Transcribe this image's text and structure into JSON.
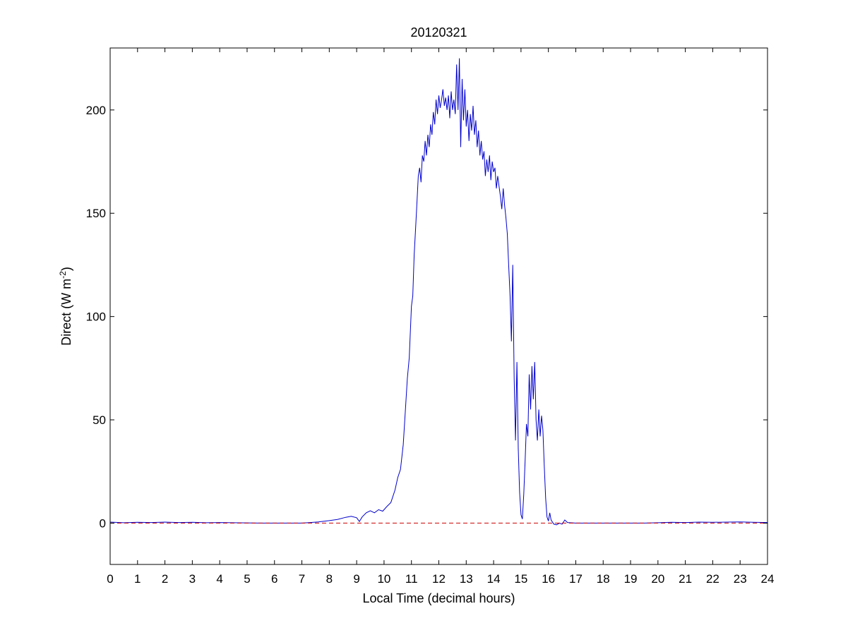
{
  "chart_data": {
    "type": "line",
    "title": "20120321",
    "xlabel": "Local Time (decimal hours)",
    "ylabel": {
      "main": "Direct (W m",
      "superscript": "-2",
      "close": ")"
    },
    "xlim": [
      0,
      24
    ],
    "ylim": [
      -20,
      230
    ],
    "x_ticks": [
      0,
      1,
      2,
      3,
      4,
      5,
      6,
      7,
      8,
      9,
      10,
      11,
      12,
      13,
      14,
      15,
      16,
      17,
      18,
      19,
      20,
      21,
      22,
      23,
      24
    ],
    "y_ticks": [
      0,
      50,
      100,
      150,
      200
    ],
    "grid": false,
    "legend": "none",
    "series": [
      {
        "color": "#0000cc",
        "style": "solid",
        "points": [
          [
            0.0,
            0.5
          ],
          [
            0.5,
            0.2
          ],
          [
            1.0,
            0.4
          ],
          [
            1.5,
            0.3
          ],
          [
            2.0,
            0.5
          ],
          [
            2.5,
            0.3
          ],
          [
            3.0,
            0.4
          ],
          [
            3.5,
            0.2
          ],
          [
            4.0,
            0.3
          ],
          [
            4.5,
            0.2
          ],
          [
            5.0,
            0.1
          ],
          [
            5.5,
            0.0
          ],
          [
            6.0,
            0.0
          ],
          [
            6.5,
            0.0
          ],
          [
            7.0,
            0.0
          ],
          [
            7.3,
            0.3
          ],
          [
            7.6,
            0.6
          ],
          [
            8.0,
            1.2
          ],
          [
            8.3,
            1.8
          ],
          [
            8.6,
            2.8
          ],
          [
            8.8,
            3.3
          ],
          [
            9.0,
            2.6
          ],
          [
            9.1,
            0.8
          ],
          [
            9.2,
            3.0
          ],
          [
            9.35,
            5.0
          ],
          [
            9.5,
            6.0
          ],
          [
            9.65,
            5.0
          ],
          [
            9.8,
            6.5
          ],
          [
            9.95,
            5.8
          ],
          [
            10.1,
            8.0
          ],
          [
            10.25,
            10.0
          ],
          [
            10.4,
            16.0
          ],
          [
            10.5,
            22.0
          ],
          [
            10.6,
            26.0
          ],
          [
            10.7,
            38.0
          ],
          [
            10.78,
            55.0
          ],
          [
            10.85,
            70.0
          ],
          [
            10.92,
            80.0
          ],
          [
            11.0,
            105.0
          ],
          [
            11.05,
            110.0
          ],
          [
            11.1,
            130.0
          ],
          [
            11.15,
            142.0
          ],
          [
            11.2,
            155.0
          ],
          [
            11.25,
            168.0
          ],
          [
            11.3,
            172.0
          ],
          [
            11.35,
            165.0
          ],
          [
            11.4,
            178.0
          ],
          [
            11.45,
            175.0
          ],
          [
            11.5,
            185.0
          ],
          [
            11.55,
            178.0
          ],
          [
            11.6,
            188.0
          ],
          [
            11.65,
            182.0
          ],
          [
            11.7,
            193.0
          ],
          [
            11.75,
            188.0
          ],
          [
            11.8,
            199.0
          ],
          [
            11.85,
            193.0
          ],
          [
            11.9,
            205.0
          ],
          [
            11.95,
            198.0
          ],
          [
            12.0,
            207.0
          ],
          [
            12.05,
            201.0
          ],
          [
            12.1,
            205.0
          ],
          [
            12.15,
            210.0
          ],
          [
            12.2,
            202.0
          ],
          [
            12.25,
            206.0
          ],
          [
            12.3,
            200.0
          ],
          [
            12.35,
            207.0
          ],
          [
            12.4,
            196.0
          ],
          [
            12.45,
            209.0
          ],
          [
            12.5,
            200.0
          ],
          [
            12.55,
            205.0
          ],
          [
            12.6,
            198.0
          ],
          [
            12.65,
            222.0
          ],
          [
            12.7,
            200.0
          ],
          [
            12.75,
            225.0
          ],
          [
            12.8,
            182.0
          ],
          [
            12.85,
            215.0
          ],
          [
            12.9,
            195.0
          ],
          [
            12.95,
            210.0
          ],
          [
            13.0,
            192.0
          ],
          [
            13.05,
            200.0
          ],
          [
            13.1,
            185.0
          ],
          [
            13.15,
            198.0
          ],
          [
            13.2,
            190.0
          ],
          [
            13.25,
            202.0
          ],
          [
            13.3,
            188.0
          ],
          [
            13.35,
            195.0
          ],
          [
            13.4,
            182.0
          ],
          [
            13.45,
            190.0
          ],
          [
            13.5,
            178.0
          ],
          [
            13.55,
            185.0
          ],
          [
            13.6,
            176.0
          ],
          [
            13.65,
            180.0
          ],
          [
            13.7,
            168.0
          ],
          [
            13.75,
            176.0
          ],
          [
            13.8,
            170.0
          ],
          [
            13.85,
            178.0
          ],
          [
            13.9,
            166.0
          ],
          [
            13.95,
            175.0
          ],
          [
            14.0,
            170.0
          ],
          [
            14.05,
            172.0
          ],
          [
            14.1,
            162.0
          ],
          [
            14.15,
            168.0
          ],
          [
            14.2,
            163.0
          ],
          [
            14.25,
            158.0
          ],
          [
            14.3,
            152.0
          ],
          [
            14.35,
            162.0
          ],
          [
            14.4,
            154.0
          ],
          [
            14.45,
            148.0
          ],
          [
            14.5,
            140.0
          ],
          [
            14.55,
            125.0
          ],
          [
            14.6,
            110.0
          ],
          [
            14.65,
            88.0
          ],
          [
            14.7,
            125.0
          ],
          [
            14.75,
            70.0
          ],
          [
            14.8,
            40.0
          ],
          [
            14.85,
            78.0
          ],
          [
            14.9,
            36.0
          ],
          [
            14.95,
            15.0
          ],
          [
            15.0,
            4.0
          ],
          [
            15.05,
            2.0
          ],
          [
            15.1,
            14.0
          ],
          [
            15.15,
            30.0
          ],
          [
            15.2,
            48.0
          ],
          [
            15.25,
            42.0
          ],
          [
            15.3,
            72.0
          ],
          [
            15.35,
            55.0
          ],
          [
            15.4,
            76.0
          ],
          [
            15.45,
            60.0
          ],
          [
            15.5,
            78.0
          ],
          [
            15.55,
            50.0
          ],
          [
            15.6,
            40.0
          ],
          [
            15.65,
            55.0
          ],
          [
            15.7,
            42.0
          ],
          [
            15.75,
            52.0
          ],
          [
            15.8,
            45.0
          ],
          [
            15.85,
            28.0
          ],
          [
            15.9,
            12.0
          ],
          [
            15.95,
            3.0
          ],
          [
            16.0,
            1.0
          ],
          [
            16.05,
            5.0
          ],
          [
            16.1,
            1.5
          ],
          [
            16.15,
            0.5
          ],
          [
            16.2,
            -0.5
          ],
          [
            16.3,
            -0.8
          ],
          [
            16.4,
            0.0
          ],
          [
            16.5,
            -0.5
          ],
          [
            16.6,
            1.5
          ],
          [
            16.7,
            0.3
          ],
          [
            16.8,
            0.2
          ],
          [
            17.0,
            0.0
          ],
          [
            17.5,
            0.0
          ],
          [
            18.0,
            0.0
          ],
          [
            18.5,
            0.0
          ],
          [
            19.0,
            0.0
          ],
          [
            19.5,
            0.0
          ],
          [
            20.0,
            0.2
          ],
          [
            20.5,
            0.4
          ],
          [
            21.0,
            0.3
          ],
          [
            21.5,
            0.5
          ],
          [
            22.0,
            0.4
          ],
          [
            22.5,
            0.5
          ],
          [
            23.0,
            0.6
          ],
          [
            23.5,
            0.4
          ],
          [
            24.0,
            0.3
          ]
        ]
      },
      {
        "color": "#cc0000",
        "style": "dashed",
        "points": [
          [
            0,
            0
          ],
          [
            24,
            0
          ]
        ]
      }
    ]
  }
}
